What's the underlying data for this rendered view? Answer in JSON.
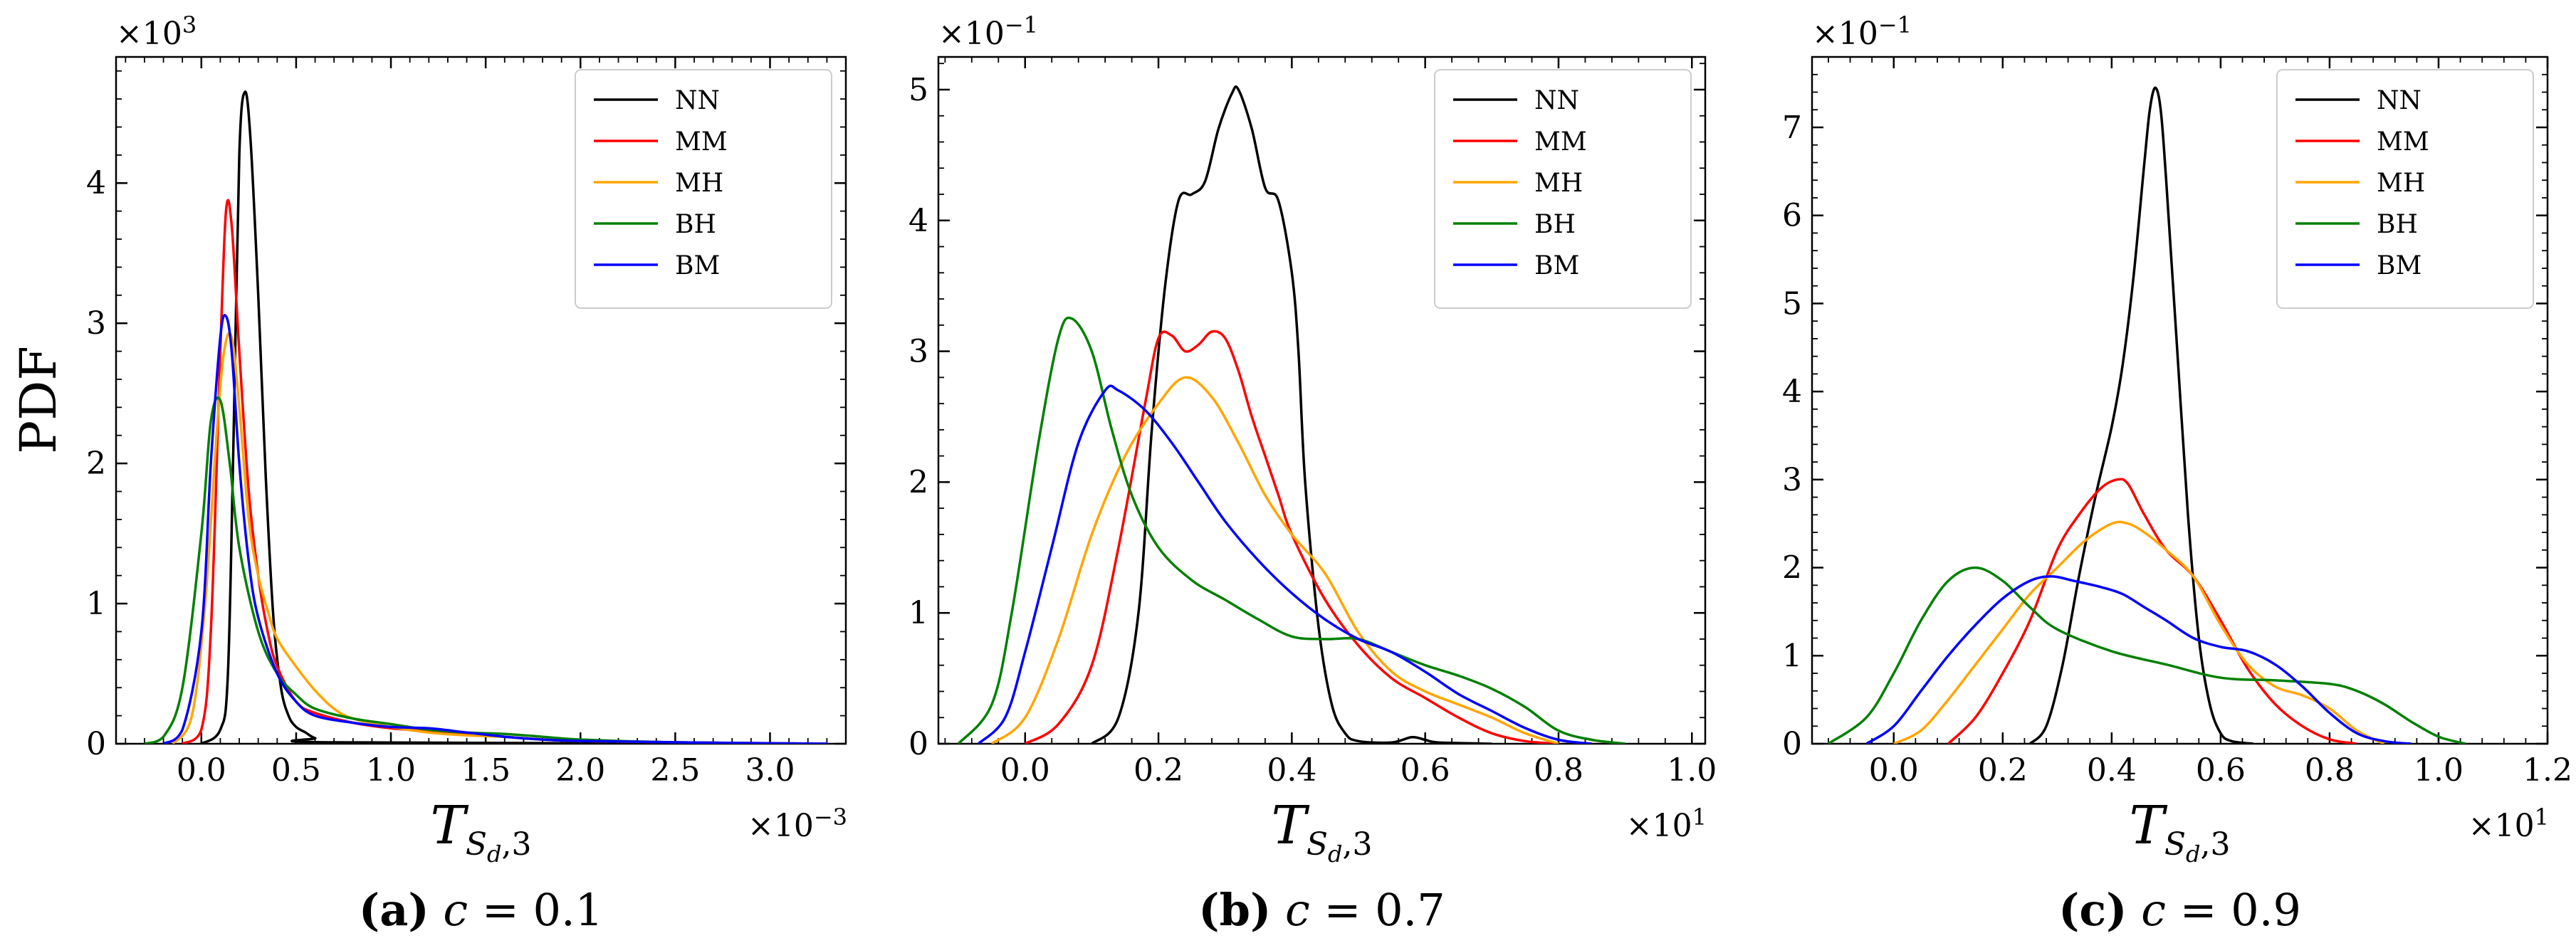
{
  "figure": {
    "ylabel": "PDF",
    "series_colors": {
      "NN": "#000000",
      "MM": "#ff0000",
      "MH": "#ffa500",
      "BH": "#008000",
      "BM": "#0000ff"
    }
  },
  "chart_data": [
    {
      "type": "line",
      "title": "",
      "caption": {
        "letter": "(a)",
        "text": "c = 0.1"
      },
      "xlabel": "T_{S_d,3}",
      "xlabel_main": "T",
      "xlabel_sub": "S",
      "xlabel_subsub": "d",
      "xlabel_tail": ",3",
      "ylabel": "PDF",
      "x_multiplier": "×10−3",
      "y_multiplier": "×103",
      "xlim": [
        -0.45,
        3.4
      ],
      "ylim": [
        0,
        4.9
      ],
      "xticks": [
        0.0,
        0.5,
        1.0,
        1.5,
        2.0,
        2.5,
        3.0
      ],
      "xtick_labels": [
        "0.0",
        "0.5",
        "1.0",
        "1.5",
        "2.0",
        "2.5",
        "3.0"
      ],
      "yticks": [
        0,
        1,
        2,
        3,
        4
      ],
      "ytick_labels": [
        "0",
        "1",
        "2",
        "3",
        "4"
      ],
      "legend": [
        "NN",
        "MM",
        "MH",
        "BH",
        "BM"
      ],
      "legend_position": "top-right",
      "series": [
        {
          "name": "NN",
          "color": "#000000",
          "x": [
            0.0,
            0.1,
            0.14,
            0.17,
            0.2,
            0.23,
            0.26,
            0.3,
            0.34,
            0.38,
            0.42,
            0.46,
            0.5,
            0.55,
            0.6,
            0.7,
            3.3
          ],
          "y": [
            0,
            0.1,
            0.5,
            2.2,
            4.2,
            4.65,
            4.3,
            3.2,
            1.9,
            0.9,
            0.4,
            0.2,
            0.12,
            0.08,
            0.04,
            0.01,
            0
          ]
        },
        {
          "name": "MM",
          "color": "#ff0000",
          "x": [
            -0.1,
            0.0,
            0.05,
            0.1,
            0.13,
            0.16,
            0.2,
            0.25,
            0.3,
            0.35,
            0.4,
            0.5,
            0.6,
            0.8,
            1.0,
            1.2,
            1.4,
            1.6,
            1.8,
            2.0,
            2.5,
            3.3
          ],
          "y": [
            0,
            0.1,
            0.8,
            2.8,
            3.8,
            3.7,
            2.8,
            1.8,
            1.2,
            0.8,
            0.55,
            0.3,
            0.22,
            0.15,
            0.11,
            0.09,
            0.07,
            0.05,
            0.03,
            0.02,
            0.01,
            0
          ]
        },
        {
          "name": "MH",
          "color": "#ffa500",
          "x": [
            -0.15,
            -0.05,
            0.02,
            0.08,
            0.12,
            0.16,
            0.2,
            0.25,
            0.3,
            0.35,
            0.4,
            0.5,
            0.6,
            0.7,
            0.8,
            1.0,
            1.2,
            1.4,
            1.6,
            1.8,
            2.0,
            2.5,
            3.3
          ],
          "y": [
            0,
            0.2,
            1.0,
            2.2,
            2.8,
            2.9,
            2.4,
            1.6,
            1.2,
            0.95,
            0.75,
            0.55,
            0.38,
            0.25,
            0.18,
            0.12,
            0.08,
            0.06,
            0.05,
            0.03,
            0.02,
            0.01,
            0
          ]
        },
        {
          "name": "BH",
          "color": "#008000",
          "x": [
            -0.3,
            -0.2,
            -0.1,
            0.0,
            0.05,
            0.1,
            0.15,
            0.2,
            0.3,
            0.4,
            0.5,
            0.6,
            0.8,
            1.0,
            1.2,
            1.4,
            1.6,
            1.8,
            2.0,
            2.5,
            3.3
          ],
          "y": [
            0,
            0.05,
            0.4,
            1.5,
            2.3,
            2.45,
            2.0,
            1.4,
            0.8,
            0.5,
            0.35,
            0.25,
            0.18,
            0.14,
            0.1,
            0.08,
            0.07,
            0.05,
            0.03,
            0.01,
            0
          ]
        },
        {
          "name": "BM",
          "color": "#0000ff",
          "x": [
            -0.2,
            -0.1,
            0.0,
            0.05,
            0.1,
            0.13,
            0.16,
            0.2,
            0.25,
            0.3,
            0.4,
            0.5,
            0.6,
            0.8,
            1.0,
            1.2,
            1.4,
            1.6,
            1.8,
            2.0,
            2.5,
            3.3
          ],
          "y": [
            0,
            0.1,
            0.8,
            2.0,
            2.9,
            3.05,
            2.8,
            2.0,
            1.3,
            0.9,
            0.5,
            0.3,
            0.2,
            0.15,
            0.12,
            0.11,
            0.08,
            0.05,
            0.03,
            0.02,
            0.01,
            0
          ]
        }
      ]
    },
    {
      "type": "line",
      "title": "",
      "caption": {
        "letter": "(b)",
        "text": "c = 0.7"
      },
      "xlabel": "T_{S_d,3}",
      "xlabel_main": "T",
      "xlabel_sub": "S",
      "xlabel_subsub": "d",
      "xlabel_tail": ",3",
      "ylabel": "",
      "x_multiplier": "×101",
      "y_multiplier": "×10−1",
      "xlim": [
        -0.13,
        1.02
      ],
      "ylim": [
        0,
        5.25
      ],
      "xticks": [
        0.0,
        0.2,
        0.4,
        0.6,
        0.8,
        1.0
      ],
      "xtick_labels": [
        "0.0",
        "0.2",
        "0.4",
        "0.6",
        "0.8",
        "1.0"
      ],
      "yticks": [
        0,
        1,
        2,
        3,
        4,
        5
      ],
      "ytick_labels": [
        "0",
        "1",
        "2",
        "3",
        "4",
        "5"
      ],
      "legend": [
        "NN",
        "MM",
        "MH",
        "BH",
        "BM"
      ],
      "legend_position": "top-right",
      "series": [
        {
          "name": "NN",
          "color": "#000000",
          "x": [
            0.1,
            0.14,
            0.17,
            0.19,
            0.21,
            0.23,
            0.25,
            0.27,
            0.29,
            0.31,
            0.32,
            0.34,
            0.36,
            0.38,
            0.4,
            0.41,
            0.42,
            0.44,
            0.46,
            0.48,
            0.5,
            0.55,
            0.58,
            0.6,
            0.62,
            0.7
          ],
          "y": [
            0,
            0.2,
            1.0,
            2.4,
            3.5,
            4.15,
            4.2,
            4.3,
            4.7,
            4.97,
            5.0,
            4.7,
            4.25,
            4.15,
            3.6,
            3.0,
            2.0,
            0.9,
            0.3,
            0.08,
            0.02,
            0.01,
            0.05,
            0.03,
            0.01,
            0
          ]
        },
        {
          "name": "MM",
          "color": "#ff0000",
          "x": [
            0.0,
            0.05,
            0.1,
            0.14,
            0.18,
            0.2,
            0.22,
            0.24,
            0.26,
            0.28,
            0.3,
            0.32,
            0.34,
            0.36,
            0.38,
            0.4,
            0.45,
            0.5,
            0.55,
            0.6,
            0.65,
            0.7,
            0.75,
            0.8
          ],
          "y": [
            0,
            0.15,
            0.6,
            1.5,
            2.6,
            3.1,
            3.12,
            3.0,
            3.05,
            3.15,
            3.1,
            2.85,
            2.5,
            2.2,
            1.9,
            1.6,
            1.1,
            0.75,
            0.5,
            0.35,
            0.2,
            0.08,
            0.02,
            0
          ]
        },
        {
          "name": "MH",
          "color": "#ffa500",
          "x": [
            -0.05,
            0.0,
            0.05,
            0.1,
            0.15,
            0.2,
            0.24,
            0.28,
            0.32,
            0.36,
            0.4,
            0.45,
            0.5,
            0.55,
            0.6,
            0.65,
            0.7,
            0.75,
            0.8
          ],
          "y": [
            0,
            0.2,
            0.8,
            1.6,
            2.2,
            2.6,
            2.8,
            2.65,
            2.3,
            1.9,
            1.6,
            1.3,
            0.85,
            0.55,
            0.4,
            0.3,
            0.2,
            0.08,
            0
          ]
        },
        {
          "name": "BH",
          "color": "#008000",
          "x": [
            -0.1,
            -0.05,
            -0.02,
            0.02,
            0.05,
            0.07,
            0.1,
            0.13,
            0.16,
            0.2,
            0.25,
            0.3,
            0.35,
            0.4,
            0.45,
            0.5,
            0.55,
            0.6,
            0.65,
            0.7,
            0.75,
            0.8,
            0.85,
            0.9
          ],
          "y": [
            0,
            0.3,
            1.0,
            2.3,
            3.1,
            3.25,
            3.0,
            2.4,
            1.9,
            1.5,
            1.25,
            1.1,
            0.95,
            0.82,
            0.8,
            0.8,
            0.7,
            0.6,
            0.52,
            0.42,
            0.28,
            0.1,
            0.03,
            0
          ]
        },
        {
          "name": "BM",
          "color": "#0000ff",
          "x": [
            -0.07,
            -0.03,
            0.0,
            0.04,
            0.08,
            0.12,
            0.14,
            0.18,
            0.22,
            0.26,
            0.3,
            0.35,
            0.4,
            0.45,
            0.5,
            0.55,
            0.6,
            0.65,
            0.7,
            0.75,
            0.8,
            0.85
          ],
          "y": [
            0,
            0.2,
            0.7,
            1.5,
            2.3,
            2.7,
            2.7,
            2.55,
            2.3,
            2.0,
            1.7,
            1.4,
            1.15,
            0.95,
            0.8,
            0.7,
            0.55,
            0.38,
            0.25,
            0.12,
            0.03,
            0
          ]
        }
      ]
    },
    {
      "type": "line",
      "title": "",
      "caption": {
        "letter": "(c)",
        "text": "c = 0.9"
      },
      "xlabel": "T_{S_d,3}",
      "xlabel_main": "T",
      "xlabel_sub": "S",
      "xlabel_subsub": "d",
      "xlabel_tail": ",3",
      "ylabel": "",
      "x_multiplier": "×101",
      "y_multiplier": "×10−1",
      "xlim": [
        -0.15,
        1.2
      ],
      "ylim": [
        0,
        7.8
      ],
      "xticks": [
        0.0,
        0.2,
        0.4,
        0.6,
        0.8,
        1.0,
        1.2
      ],
      "xtick_labels": [
        "0.0",
        "0.2",
        "0.4",
        "0.6",
        "0.8",
        "1.0",
        "1.2"
      ],
      "yticks": [
        0,
        1,
        2,
        3,
        4,
        5,
        6,
        7
      ],
      "ytick_labels": [
        "0",
        "1",
        "2",
        "3",
        "4",
        "5",
        "6",
        "7"
      ],
      "legend": [
        "NN",
        "MM",
        "MH",
        "BH",
        "BM"
      ],
      "legend_position": "top-right",
      "series": [
        {
          "name": "NN",
          "color": "#000000",
          "x": [
            0.25,
            0.28,
            0.31,
            0.34,
            0.37,
            0.4,
            0.42,
            0.44,
            0.46,
            0.47,
            0.48,
            0.49,
            0.5,
            0.52,
            0.54,
            0.56,
            0.58,
            0.6,
            0.62,
            0.66
          ],
          "y": [
            0,
            0.2,
            0.9,
            1.9,
            2.8,
            3.6,
            4.3,
            5.3,
            6.6,
            7.2,
            7.45,
            7.2,
            6.4,
            4.5,
            2.6,
            1.2,
            0.45,
            0.12,
            0.03,
            0
          ]
        },
        {
          "name": "MM",
          "color": "#ff0000",
          "x": [
            0.1,
            0.15,
            0.2,
            0.25,
            0.3,
            0.34,
            0.38,
            0.41,
            0.43,
            0.46,
            0.5,
            0.55,
            0.6,
            0.65,
            0.7,
            0.75,
            0.8,
            0.85
          ],
          "y": [
            0,
            0.3,
            0.8,
            1.4,
            2.2,
            2.6,
            2.9,
            3.0,
            2.95,
            2.6,
            2.2,
            1.9,
            1.4,
            0.85,
            0.45,
            0.2,
            0.05,
            0
          ]
        },
        {
          "name": "MH",
          "color": "#ffa500",
          "x": [
            0.0,
            0.05,
            0.1,
            0.15,
            0.2,
            0.25,
            0.3,
            0.35,
            0.4,
            0.43,
            0.46,
            0.5,
            0.55,
            0.6,
            0.65,
            0.7,
            0.75,
            0.8,
            0.85,
            0.9
          ],
          "y": [
            0,
            0.15,
            0.5,
            0.9,
            1.3,
            1.7,
            2.0,
            2.3,
            2.5,
            2.5,
            2.4,
            2.2,
            1.9,
            1.35,
            0.9,
            0.65,
            0.55,
            0.4,
            0.15,
            0
          ]
        },
        {
          "name": "BH",
          "color": "#008000",
          "x": [
            -0.12,
            -0.05,
            0.0,
            0.05,
            0.1,
            0.15,
            0.2,
            0.25,
            0.3,
            0.4,
            0.5,
            0.6,
            0.7,
            0.8,
            0.85,
            0.9,
            0.95,
            1.0,
            1.05
          ],
          "y": [
            0,
            0.3,
            0.8,
            1.4,
            1.85,
            2.0,
            1.85,
            1.55,
            1.3,
            1.05,
            0.9,
            0.75,
            0.72,
            0.68,
            0.6,
            0.45,
            0.25,
            0.08,
            0
          ]
        },
        {
          "name": "BM",
          "color": "#0000ff",
          "x": [
            -0.05,
            0.0,
            0.05,
            0.1,
            0.15,
            0.2,
            0.25,
            0.29,
            0.33,
            0.38,
            0.42,
            0.46,
            0.5,
            0.55,
            0.6,
            0.65,
            0.7,
            0.75,
            0.8,
            0.85,
            0.9,
            0.95
          ],
          "y": [
            0,
            0.2,
            0.6,
            1.0,
            1.35,
            1.65,
            1.85,
            1.9,
            1.85,
            1.78,
            1.7,
            1.55,
            1.4,
            1.2,
            1.1,
            1.05,
            0.9,
            0.65,
            0.35,
            0.12,
            0.03,
            0
          ]
        }
      ]
    }
  ]
}
